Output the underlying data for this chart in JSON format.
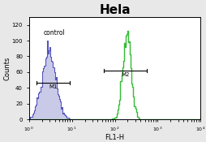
{
  "title": "Hela",
  "title_fontsize": 11,
  "title_fontweight": "bold",
  "xlabel": "FL1-H",
  "ylabel": "Counts",
  "xlim": [
    1,
    10000
  ],
  "ylim": [
    0,
    130
  ],
  "yticks": [
    0,
    20,
    40,
    60,
    80,
    100,
    120
  ],
  "control_color": "#5555bb",
  "control_fill_color": "#8888cc",
  "sample_color": "#33bb33",
  "control_label": "control",
  "control_peak_mean_log": 1.05,
  "control_peak_sigma": 0.38,
  "control_peak_y": 100,
  "sample_peak_mean_log": 5.25,
  "sample_peak_sigma": 0.22,
  "sample_peak_y": 112,
  "m1_x1": 1.5,
  "m1_x2": 9.0,
  "m1_y": 46,
  "m1_label": "M1",
  "m2_x1": 55,
  "m2_x2": 550,
  "m2_y": 62,
  "m2_label": "M2",
  "background_color": "#e8e8e8",
  "plot_bg_color": "#ffffff",
  "outer_border_color": "#aaaaaa"
}
